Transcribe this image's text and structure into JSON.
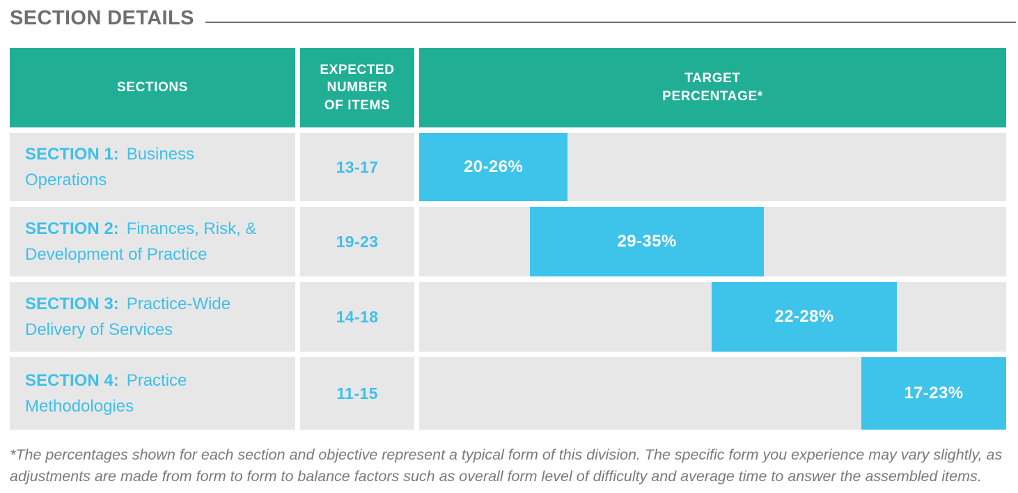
{
  "page": {
    "title": "SECTION DETAILS",
    "footnote": "*The percentages shown for each section and objective represent a typical form of this division. The specific form you experience may vary slightly, as\nadjustments are made from form to form to balance factors such as overall form level of difficulty and average time to answer the assembled items."
  },
  "colors": {
    "header_green": "#20AE94",
    "row_gray": "#E8E7E8",
    "bar_blue": "#3EC4EA",
    "section_text_blue": "#3EC0E9",
    "title_gray": "#6D6E71",
    "footnote_gray": "#797A7D"
  },
  "table": {
    "headers": {
      "sections": "SECTIONS",
      "items": "EXPECTED\nNUMBER\nOF ITEMS",
      "target": "TARGET\nPERCENTAGE*"
    },
    "rows": [
      {
        "prefix": "SECTION 1:",
        "name": "Business\nOperations",
        "items": "13-17",
        "target": "20-26%"
      },
      {
        "prefix": "SECTION 2:",
        "name": "Finances, Risk, &\nDevelopment of Practice",
        "items": "19-23",
        "target": "29-35%"
      },
      {
        "prefix": "SECTION 3:",
        "name": "Practice-Wide\nDelivery of Services",
        "items": "14-18",
        "target": "22-28%"
      },
      {
        "prefix": "SECTION 4:",
        "name": "Practice\nMethodologies",
        "items": "11-15",
        "target": "17-23%"
      }
    ]
  },
  "chart_data": {
    "type": "bar",
    "variant": "horizontal-range-gantt",
    "title": "TARGET PERCENTAGE*",
    "unit": "percent",
    "axis_range_pct": [
      0,
      100
    ],
    "grid": false,
    "legend": "none",
    "rows": [
      {
        "section": "SECTION 1",
        "label": "20-26%",
        "low": 20,
        "high": 26,
        "bar_start_pct": 0,
        "bar_end_pct": 25.3
      },
      {
        "section": "SECTION 2",
        "label": "29-35%",
        "low": 29,
        "high": 35,
        "bar_start_pct": 18.9,
        "bar_end_pct": 58.7
      },
      {
        "section": "SECTION 3",
        "label": "22-28%",
        "low": 22,
        "high": 28,
        "bar_start_pct": 49.8,
        "bar_end_pct": 81.4
      },
      {
        "section": "SECTION 4",
        "label": "17-23%",
        "low": 17,
        "high": 23,
        "bar_start_pct": 75.3,
        "bar_end_pct": 100
      }
    ]
  }
}
